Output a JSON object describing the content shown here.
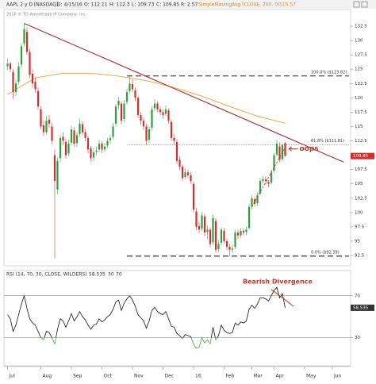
{
  "header": {
    "symbol": "AAPL 2 y D [NASDAQ]",
    "fields": [
      "D: 4/15/16",
      "O: 112.11",
      "H: 112.3",
      "L: 109.73",
      "C: 109.85",
      "R: 2.57"
    ],
    "copyright": "2016 © TD Ameritrade IP Company, Inc."
  },
  "chart_data": {
    "type": "candlestick",
    "up_color": "#2e9e3e",
    "down_color": "#d0312d",
    "candles": [
      [
        125.5,
        126.9,
        124.8,
        126
      ],
      [
        126,
        126.4,
        124.5,
        125
      ],
      [
        124.5,
        125,
        119.8,
        121
      ],
      [
        121,
        123.2,
        120.3,
        122.5
      ],
      [
        122.8,
        126.2,
        122.3,
        125.5
      ],
      [
        125.8,
        129.6,
        125.2,
        129
      ],
      [
        129.5,
        133,
        129,
        132
      ],
      [
        131.5,
        132.3,
        127.5,
        128
      ],
      [
        128,
        128.6,
        123.5,
        124
      ],
      [
        124.2,
        125,
        121.8,
        122.5
      ],
      [
        122.8,
        123.5,
        120.9,
        121.5
      ],
      [
        121.2,
        121.8,
        117.9,
        118.5
      ],
      [
        118,
        118.6,
        114.5,
        115
      ],
      [
        115.2,
        116,
        113.3,
        114
      ],
      [
        114,
        116.8,
        113.6,
        116
      ],
      [
        116.2,
        117,
        114.8,
        115.5
      ],
      [
        115,
        115.6,
        111.9,
        112.5
      ],
      [
        110,
        111,
        92,
        105.5
      ],
      [
        104,
        109.6,
        103.2,
        109
      ],
      [
        109.5,
        113.6,
        108.8,
        113
      ],
      [
        113.2,
        114,
        111.8,
        112.5
      ],
      [
        112.3,
        112.8,
        109.4,
        110
      ],
      [
        110.3,
        112.7,
        109.8,
        112
      ],
      [
        112.2,
        115.2,
        111.7,
        114.5
      ],
      [
        114.3,
        114.9,
        111.5,
        112
      ],
      [
        112.1,
        114,
        111.4,
        113.5
      ],
      [
        113.7,
        116.3,
        113.2,
        115.5
      ],
      [
        115.4,
        115.9,
        113.5,
        114
      ],
      [
        114,
        114.6,
        112.4,
        113
      ],
      [
        113,
        113.4,
        110.3,
        111
      ],
      [
        111.2,
        111.6,
        108.9,
        109.5
      ],
      [
        109.6,
        111.2,
        109,
        110.5
      ],
      [
        110.6,
        111.5,
        110,
        110.8
      ],
      [
        111,
        112.7,
        110.5,
        112
      ],
      [
        112,
        112.4,
        110.4,
        111
      ],
      [
        111,
        112.1,
        110.6,
        111.5
      ],
      [
        111.7,
        113,
        111.2,
        112.5
      ],
      [
        112.6,
        113.6,
        112,
        113
      ],
      [
        113.2,
        115.6,
        112.8,
        115
      ],
      [
        115.5,
        119,
        115,
        118.5
      ],
      [
        118.7,
        120.2,
        118,
        119.5
      ],
      [
        119,
        119.4,
        115.4,
        116
      ],
      [
        116.3,
        119.6,
        115.8,
        119
      ],
      [
        119.3,
        121.6,
        118.8,
        121
      ],
      [
        121.2,
        123.82,
        120.7,
        122.5
      ],
      [
        122.4,
        123.3,
        121,
        121.5
      ],
      [
        121.3,
        121.8,
        119.4,
        120
      ],
      [
        120,
        120.4,
        116.5,
        117
      ],
      [
        117,
        117.5,
        115.3,
        116
      ],
      [
        116,
        116.6,
        114.4,
        115
      ],
      [
        115,
        115.5,
        111.8,
        112.5
      ],
      [
        112.7,
        115,
        112.2,
        114.5
      ],
      [
        114.8,
        118.6,
        114.3,
        118
      ],
      [
        118.2,
        119.8,
        117.7,
        119
      ],
      [
        119,
        119.4,
        117.5,
        118
      ],
      [
        118,
        118.5,
        117,
        117.5
      ],
      [
        117.5,
        118,
        116.4,
        117
      ],
      [
        117.2,
        118.7,
        116.8,
        118
      ],
      [
        117.8,
        118.2,
        115.5,
        116
      ],
      [
        115.8,
        116.2,
        112.5,
        113
      ],
      [
        113,
        113.6,
        111.9,
        112.5
      ],
      [
        112.3,
        112.8,
        108.5,
        109
      ],
      [
        109.2,
        109.8,
        107.4,
        108
      ],
      [
        108,
        108.4,
        105.5,
        106
      ],
      [
        106.2,
        107.7,
        105.8,
        107
      ],
      [
        107,
        107.5,
        106,
        106.5
      ],
      [
        106.5,
        107,
        105,
        105.5
      ],
      [
        105,
        105.4,
        100,
        100.5
      ],
      [
        100.2,
        100.8,
        96.9,
        97.5
      ],
      [
        97.6,
        98.4,
        96.4,
        97
      ],
      [
        97.2,
        100.1,
        96.8,
        99.5
      ],
      [
        99.3,
        99.8,
        95.9,
        96.5
      ],
      [
        96.6,
        97.7,
        95.4,
        97
      ],
      [
        97,
        97.4,
        93.9,
        94.5
      ],
      [
        94.8,
        99.6,
        94.3,
        99
      ],
      [
        98.5,
        99,
        93,
        93.5
      ],
      [
        93.6,
        95.2,
        93.1,
        94.5
      ],
      [
        94.7,
        97.4,
        94.2,
        97
      ],
      [
        96.8,
        97.3,
        94.6,
        95
      ],
      [
        95,
        95.5,
        93.4,
        94
      ],
      [
        94,
        94.5,
        92.39,
        93.5
      ],
      [
        93.5,
        94.4,
        92.9,
        93.7
      ],
      [
        94,
        97,
        93.6,
        96.5
      ],
      [
        96.5,
        97,
        95.4,
        96
      ],
      [
        96,
        97.3,
        95.6,
        96.8
      ],
      [
        96.8,
        97.2,
        96,
        96.5
      ],
      [
        96.6,
        97.6,
        96.1,
        97
      ],
      [
        97.3,
        101.5,
        97,
        101
      ],
      [
        101,
        103,
        100.5,
        102.5
      ],
      [
        102.3,
        102.8,
        101,
        101.5
      ],
      [
        101.6,
        103.5,
        101.2,
        103
      ],
      [
        103.3,
        106,
        103,
        105.5
      ],
      [
        105.5,
        106.4,
        105.1,
        105.8
      ],
      [
        105.8,
        106.3,
        104.9,
        105.5
      ],
      [
        105.3,
        105.7,
        104.4,
        105
      ],
      [
        105.2,
        107.5,
        104.9,
        107
      ],
      [
        107.3,
        110.4,
        107,
        110
      ],
      [
        110.1,
        112.7,
        109.8,
        112
      ],
      [
        111.5,
        112.2,
        108.8,
        109.2
      ],
      [
        109.3,
        112,
        109,
        111.8
      ],
      [
        112.11,
        112.3,
        109.73,
        109.85
      ]
    ],
    "xlim": [
      -1,
      123
    ],
    "xticks": [
      {
        "value": 0,
        "label": "Jul"
      },
      {
        "value": 12,
        "label": "Aug"
      },
      {
        "value": 23,
        "label": "Sep"
      },
      {
        "value": 34,
        "label": "Oct"
      },
      {
        "value": 45,
        "label": "Nov"
      },
      {
        "value": 56,
        "label": "Dec"
      },
      {
        "value": 67,
        "label": "16"
      },
      {
        "value": 78,
        "label": "Feb"
      },
      {
        "value": 88,
        "label": "Mar"
      },
      {
        "value": 96,
        "label": "Apr"
      },
      {
        "value": 107,
        "label": "May"
      },
      {
        "value": 117,
        "label": "Jun"
      }
    ],
    "ylim": [
      90.7,
      135
    ],
    "yticks": [
      92.5,
      95,
      97.5,
      100,
      102.5,
      105,
      107.5,
      110,
      112.5,
      115,
      117.5,
      120,
      122.5,
      125,
      127.5,
      130,
      132.5
    ],
    "sma": {
      "name": "SimpleMovingAvg (CLOSE, 200, 0)",
      "color": "#e8a33c",
      "x": [
        0,
        10,
        20,
        30,
        40,
        50,
        60,
        70,
        80,
        90,
        100
      ],
      "values": [
        120.6,
        123.5,
        124.3,
        124.3,
        123.8,
        123,
        121.8,
        120.3,
        118.5,
        116.8,
        115.57
      ]
    },
    "trendline": {
      "color": "#a52a2a",
      "x": [
        6,
        121
      ],
      "values": [
        133,
        108.8
      ]
    },
    "support_line": {
      "color": "#c0392b",
      "x": [
        88,
        100
      ],
      "values": [
        101,
        111.3
      ]
    },
    "fib_levels": [
      {
        "label": "100.0% ($123.82)",
        "value": 123.82
      },
      {
        "label": "61.8% ($111.81)",
        "value": 111.81
      },
      {
        "label": "0.0% ($92.39)",
        "value": 92.39
      }
    ],
    "annotation": {
      "text": "oops",
      "color": "#c0392b"
    },
    "rsi": {
      "title": "RSI (14, 70, 30, CLOSE, WILDERS)",
      "color": "#111111",
      "oversold_color": "#3cb043",
      "values": [
        52,
        48,
        36,
        42,
        52,
        62,
        70,
        58,
        48,
        44,
        42,
        36,
        30,
        28,
        36,
        35,
        30,
        24,
        38,
        48,
        46,
        40,
        46,
        53,
        46,
        50,
        55,
        50,
        47,
        42,
        38,
        42,
        43,
        48,
        45,
        47,
        50,
        52,
        57,
        64,
        66,
        56,
        63,
        67,
        70,
        66,
        60,
        52,
        49,
        46,
        39,
        46,
        56,
        59,
        55,
        53,
        52,
        55,
        48,
        41,
        40,
        34,
        32,
        29,
        33,
        32,
        31,
        24,
        20,
        21,
        30,
        25,
        28,
        24,
        40,
        28,
        32,
        42,
        37,
        35,
        34,
        35,
        44,
        42,
        45,
        44,
        46,
        57,
        61,
        58,
        62,
        68,
        68,
        67,
        65,
        70,
        75,
        78,
        68,
        72,
        58.535
      ],
      "ylim": [
        4,
        91
      ],
      "yticks": [
        30,
        70
      ],
      "divergence": {
        "text": "Bearish Divergence",
        "color": "#c0392b",
        "x": [
          95,
          103
        ],
        "values": [
          76,
          60
        ]
      }
    }
  }
}
